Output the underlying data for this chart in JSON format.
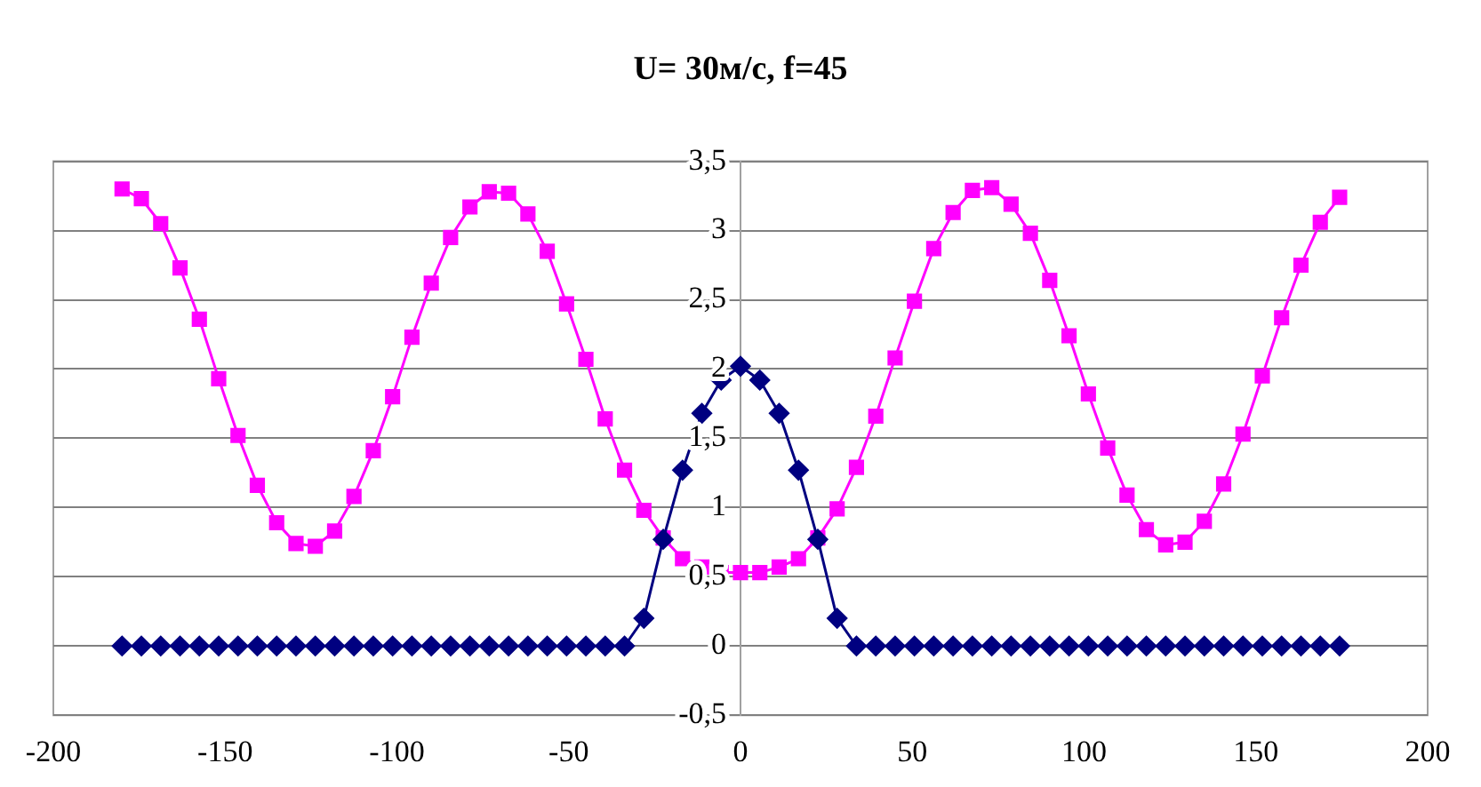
{
  "chart_data": {
    "type": "line",
    "title": "U= 30м/с, f=45",
    "x": [
      -180,
      -174.375,
      -168.75,
      -163.125,
      -157.5,
      -151.875,
      -146.25,
      -140.625,
      -135,
      -129.375,
      -123.75,
      -118.125,
      -112.5,
      -106.875,
      -101.25,
      -95.625,
      -90,
      -84.375,
      -78.75,
      -73.125,
      -67.5,
      -61.875,
      -56.25,
      -50.625,
      -45,
      -39.375,
      -33.75,
      -28.125,
      -22.5,
      -16.875,
      -11.25,
      -5.625,
      0,
      5.625,
      11.25,
      16.875,
      22.5,
      28.125,
      33.75,
      39.375,
      45,
      50.625,
      56.25,
      61.875,
      67.5,
      73.125,
      78.75,
      84.375,
      90,
      95.625,
      101.25,
      106.875,
      112.5,
      118.125,
      123.75,
      129.375,
      135,
      140.625,
      146.25,
      151.875,
      157.5,
      163.125,
      168.75,
      174.375
    ],
    "series": [
      {
        "color": "#ff00ff",
        "marker": "square",
        "values": [
          3.3,
          3.23,
          3.05,
          2.73,
          2.36,
          1.93,
          1.52,
          1.16,
          0.89,
          0.74,
          0.72,
          0.83,
          1.08,
          1.41,
          1.8,
          2.23,
          2.62,
          2.95,
          3.17,
          3.28,
          3.27,
          3.12,
          2.85,
          2.47,
          2.07,
          1.64,
          1.27,
          0.98,
          0.78,
          0.63,
          0.57,
          0.53,
          0.53,
          0.53,
          0.57,
          0.63,
          0.78,
          0.99,
          1.29,
          1.66,
          2.08,
          2.49,
          2.87,
          3.13,
          3.29,
          3.31,
          3.19,
          2.98,
          2.64,
          2.24,
          1.82,
          1.43,
          1.09,
          0.84,
          0.73,
          0.75,
          0.9,
          1.17,
          1.53,
          1.95,
          2.37,
          2.75,
          3.06,
          3.24
        ]
      },
      {
        "color": "#000080",
        "marker": "diamond",
        "values": [
          0,
          0,
          0,
          0,
          0,
          0,
          0,
          0,
          0,
          0,
          0,
          0,
          0,
          0,
          0,
          0,
          0,
          0,
          0,
          0,
          0,
          0,
          0,
          0,
          0,
          0,
          0,
          0.2,
          0.77,
          1.27,
          1.68,
          1.92,
          2.02,
          1.92,
          1.68,
          1.27,
          0.77,
          0.2,
          0,
          0,
          0,
          0,
          0,
          0,
          0,
          0,
          0,
          0,
          0,
          0,
          0,
          0,
          0,
          0,
          0,
          0,
          0,
          0,
          0,
          0,
          0,
          0,
          0,
          0
        ]
      }
    ],
    "xlim": [
      -200,
      200
    ],
    "xticks": [
      -200,
      -150,
      -100,
      -50,
      0,
      50,
      100,
      150,
      200
    ],
    "ylim": [
      -0.5,
      3.5
    ],
    "yticks": [
      {
        "value": -0.5,
        "label": "-0,5"
      },
      0,
      {
        "value": 0.5,
        "label": "0,5"
      },
      1,
      {
        "value": 1.5,
        "label": "1,5"
      },
      2,
      {
        "value": 2.5,
        "label": "2,5"
      },
      3,
      {
        "value": 3.5,
        "label": "3,5"
      }
    ],
    "grid": "y",
    "legend": false
  }
}
